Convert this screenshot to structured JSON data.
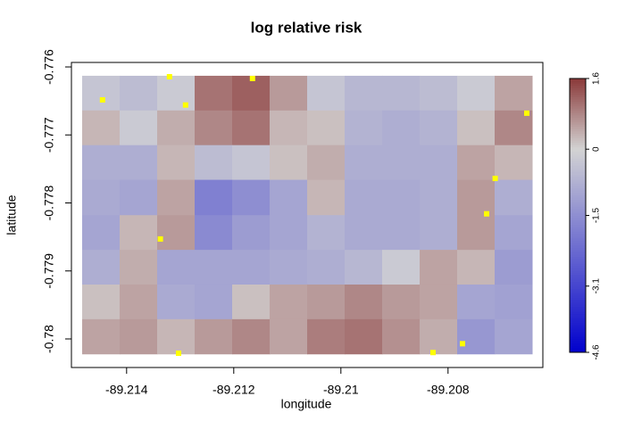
{
  "chart_data": {
    "type": "heatmap",
    "title": "log relative risk",
    "x_label": "longitude",
    "y_label": "latitude",
    "x": [
      -89.21483,
      -89.21413,
      -89.21343,
      -89.21273,
      -89.21203,
      -89.21133,
      -89.21063,
      -89.20993,
      -89.20923,
      -89.20853,
      -89.20783,
      -89.20713,
      -89.20643
    ],
    "y": [
      -0.77613,
      -0.77664,
      -0.77715,
      -0.77766,
      -0.77818,
      -0.77869,
      -0.7792,
      -0.77971,
      -0.78022
    ],
    "z": [
      [
        -0.3,
        -0.5,
        -0.2,
        1.0,
        1.2,
        0.6,
        -0.3,
        -0.6,
        -0.6,
        -0.5,
        -0.2,
        0.5
      ],
      [
        0.3,
        -0.2,
        0.4,
        0.8,
        1.0,
        0.3,
        0.2,
        -0.7,
        -0.8,
        -0.7,
        0.2,
        0.8
      ],
      [
        -0.8,
        -0.8,
        0.3,
        -0.5,
        -0.3,
        0.2,
        0.4,
        -0.8,
        -0.8,
        -0.8,
        0.5,
        0.3
      ],
      [
        -0.9,
        -1.0,
        0.5,
        -1.8,
        -1.5,
        -1.0,
        0.3,
        -0.9,
        -0.9,
        -0.8,
        0.6,
        -0.8
      ],
      [
        -1.0,
        0.3,
        0.6,
        -1.6,
        -1.2,
        -1.0,
        -0.7,
        -0.9,
        -0.9,
        -0.8,
        0.6,
        -1.0
      ],
      [
        -0.8,
        0.4,
        -1.0,
        -1.0,
        -1.0,
        -0.9,
        -0.8,
        -0.6,
        -0.2,
        0.5,
        0.3,
        -1.2
      ],
      [
        0.2,
        0.5,
        -0.9,
        -1.0,
        0.2,
        0.5,
        0.6,
        0.8,
        0.6,
        0.5,
        -1.0,
        -1.1
      ],
      [
        0.5,
        0.6,
        0.3,
        0.6,
        0.8,
        0.5,
        0.9,
        1.0,
        0.7,
        0.4,
        -1.3,
        -1.0
      ]
    ],
    "significant": {
      "color": "#ffff00",
      "x": [
        -89.21445,
        -89.2132,
        -89.21165,
        -89.2129,
        -89.20653,
        -89.20712,
        -89.20728,
        -89.21337,
        -89.20773,
        -89.20828,
        -89.21303
      ],
      "y": [
        -0.776485,
        -0.776144,
        -0.77617,
        -0.77656,
        -0.77668,
        -0.77764,
        -0.77816,
        -0.77853,
        -0.78007,
        -0.7802,
        -0.78021
      ]
    },
    "colors": [
      "#0000cd",
      "#d3d3d3",
      "#8b3a3a"
    ],
    "zlim": [
      -4.6,
      1.6
    ],
    "zticks": [
      -4.6,
      -3.1,
      -1.5,
      0,
      1.6
    ],
    "xlim": [
      -89.21503,
      -89.20623
    ],
    "xticks": [
      -89.214,
      -89.212,
      -89.21,
      -89.208
    ],
    "ylim": [
      -0.78042,
      -0.775934
    ],
    "yticks": [
      -0.78,
      -0.779,
      -0.778,
      -0.777,
      -0.776
    ]
  }
}
